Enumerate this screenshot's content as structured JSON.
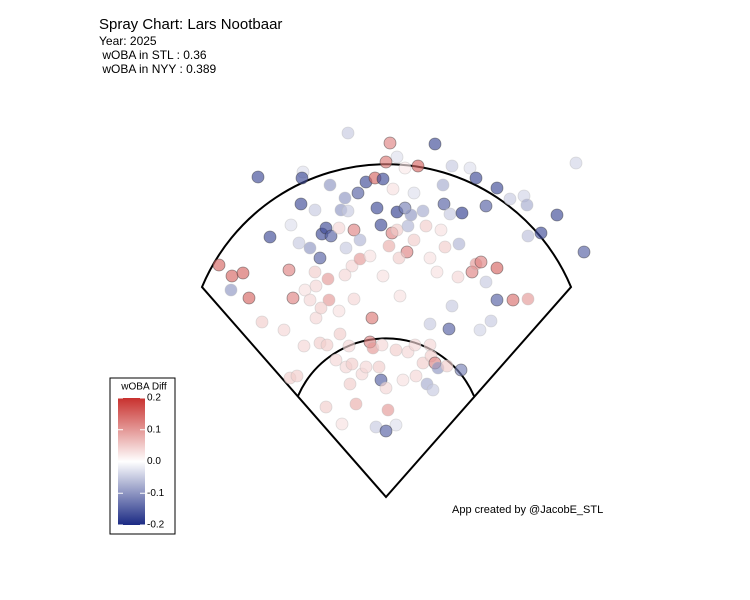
{
  "chart_data": {
    "type": "scatter",
    "title": "Spray Chart: Lars Nootbaar",
    "subtitles": [
      "Year: 2025",
      " wOBA in STL : 0.36",
      " wOBA in NYY : 0.389"
    ],
    "caption": "App created by @JacobE_STL",
    "legend_title": "wOBA Diff",
    "clim": [
      -0.2,
      0.2
    ],
    "cticks": [
      0.2,
      0.1,
      {
        "value": 0,
        "label": "0.0"
      },
      -0.1,
      -0.2
    ],
    "colors": [
      "#1b2a84",
      "#ffffff",
      "#c8312e"
    ],
    "x": [
      -38,
      4,
      49,
      11,
      0,
      19,
      32,
      66,
      84,
      190,
      -128,
      -83,
      -84,
      -56,
      -20,
      -11,
      -3,
      -28,
      -41,
      7,
      28,
      57,
      90,
      111,
      124,
      138,
      141,
      100,
      -85,
      -71,
      -45,
      -38,
      -9,
      11,
      19,
      25,
      37,
      58,
      64,
      76,
      171,
      155,
      142,
      198,
      -116,
      -95,
      -87,
      -76,
      -64,
      -60,
      -55,
      -47,
      -40,
      -32,
      -26,
      -5,
      6,
      11,
      3,
      22,
      28,
      40,
      55,
      59,
      73,
      21,
      -66,
      -71,
      -58,
      -34,
      -26,
      -16,
      13,
      44,
      86,
      90,
      95,
      111,
      100,
      -167,
      -154,
      -143,
      -155,
      -137,
      -97,
      -93,
      -81,
      -70,
      -57,
      -76,
      -41,
      -32,
      -3,
      14,
      51,
      72,
      66,
      111,
      127,
      142,
      -124,
      -102,
      -70,
      -65,
      -47,
      -14,
      44,
      63,
      105,
      94,
      -82,
      -66,
      -59,
      -46,
      -37,
      -16,
      -13,
      -4,
      10,
      22,
      29,
      44,
      37,
      45,
      49,
      52,
      75,
      61,
      -96,
      -89,
      -50,
      -40,
      -34,
      -24,
      -20,
      -7,
      17,
      30,
      41,
      47,
      -5,
      -36,
      -30,
      0,
      2,
      -60,
      -10,
      10,
      0,
      -44
    ],
    "y": [
      364,
      354,
      353,
      340,
      335,
      329,
      331,
      331,
      329,
      334,
      320,
      325,
      319,
      312,
      315,
      319,
      318,
      304,
      299,
      308,
      304,
      312,
      319,
      309,
      298,
      301,
      292,
      291,
      293,
      287,
      287,
      286,
      289,
      285,
      289,
      282,
      286,
      293,
      283,
      284,
      282,
      264,
      261,
      245,
      260,
      272,
      254,
      249,
      263,
      269,
      261,
      269,
      249,
      267,
      257,
      272,
      264,
      267,
      251,
      271,
      257,
      271,
      267,
      250,
      253,
      245,
      239,
      225,
      218,
      231,
      238,
      241,
      239,
      239,
      225,
      233,
      235,
      229,
      215,
      232,
      221,
      224,
      207,
      199,
      227,
      199,
      207,
      211,
      197,
      197,
      222,
      198,
      221,
      201,
      225,
      220,
      191,
      197,
      197,
      198,
      175,
      167,
      179,
      189,
      186,
      179,
      173,
      168,
      176,
      167,
      151,
      154,
      152,
      163,
      151,
      155,
      149,
      152,
      147,
      145,
      152,
      152,
      134,
      141,
      134,
      129,
      127,
      131,
      119,
      121,
      137,
      130,
      133,
      123,
      130,
      130,
      117,
      121,
      113,
      107,
      117,
      113,
      93,
      109,
      87,
      90,
      70,
      72,
      66,
      73
    ],
    "values": [
      -0.05,
      0.12,
      -0.17,
      -0.03,
      0.13,
      0.02,
      0.15,
      -0.05,
      -0.03,
      -0.04,
      -0.17,
      -0.03,
      -0.17,
      -0.1,
      -0.17,
      0.15,
      -0.17,
      -0.15,
      -0.1,
      0.03,
      -0.03,
      -0.08,
      -0.17,
      -0.17,
      -0.05,
      -0.04,
      -0.08,
      -0.15,
      -0.17,
      -0.05,
      -0.1,
      -0.05,
      -0.17,
      -0.18,
      -0.12,
      -0.1,
      -0.08,
      -0.15,
      -0.05,
      -0.18,
      -0.17,
      -0.17,
      -0.06,
      -0.15,
      -0.17,
      -0.03,
      -0.05,
      -0.1,
      -0.17,
      -0.17,
      -0.15,
      0.04,
      -0.05,
      0.12,
      -0.07,
      -0.17,
      0.12,
      0.05,
      0.08,
      -0.07,
      0.05,
      0.05,
      0.03,
      0.05,
      -0.07,
      0.12,
      -0.15,
      0.05,
      0.1,
      0.04,
      0.1,
      0.03,
      0.05,
      0.03,
      0.12,
      0.1,
      0.12,
      0.15,
      -0.05,
      0.15,
      0.15,
      0.15,
      -0.1,
      0.15,
      0.12,
      0.12,
      0.03,
      0.04,
      0.1,
      0.04,
      0.04,
      0.04,
      0.03,
      0.03,
      0.03,
      0.04,
      -0.05,
      -0.15,
      0.14,
      0.1,
      0.05,
      0.04,
      0.04,
      0.05,
      0.03,
      0.13,
      -0.05,
      -0.15,
      -0.05,
      -0.04,
      0.04,
      0.05,
      0.05,
      0.05,
      0.04,
      0.12,
      0.1,
      0.04,
      0.05,
      0.04,
      0.04,
      0.04,
      0.05,
      0.05,
      0.12,
      -0.1,
      -0.12,
      0.05,
      0.05,
      0.05,
      0.04,
      0.04,
      0.05,
      0.04,
      0.04,
      0.05,
      0.03,
      0.04,
      -0.08,
      -0.05,
      -0.15,
      0.05,
      0.08,
      0.04,
      0.1,
      0.05,
      -0.05,
      -0.03,
      -0.15,
      0.03
    ]
  }
}
